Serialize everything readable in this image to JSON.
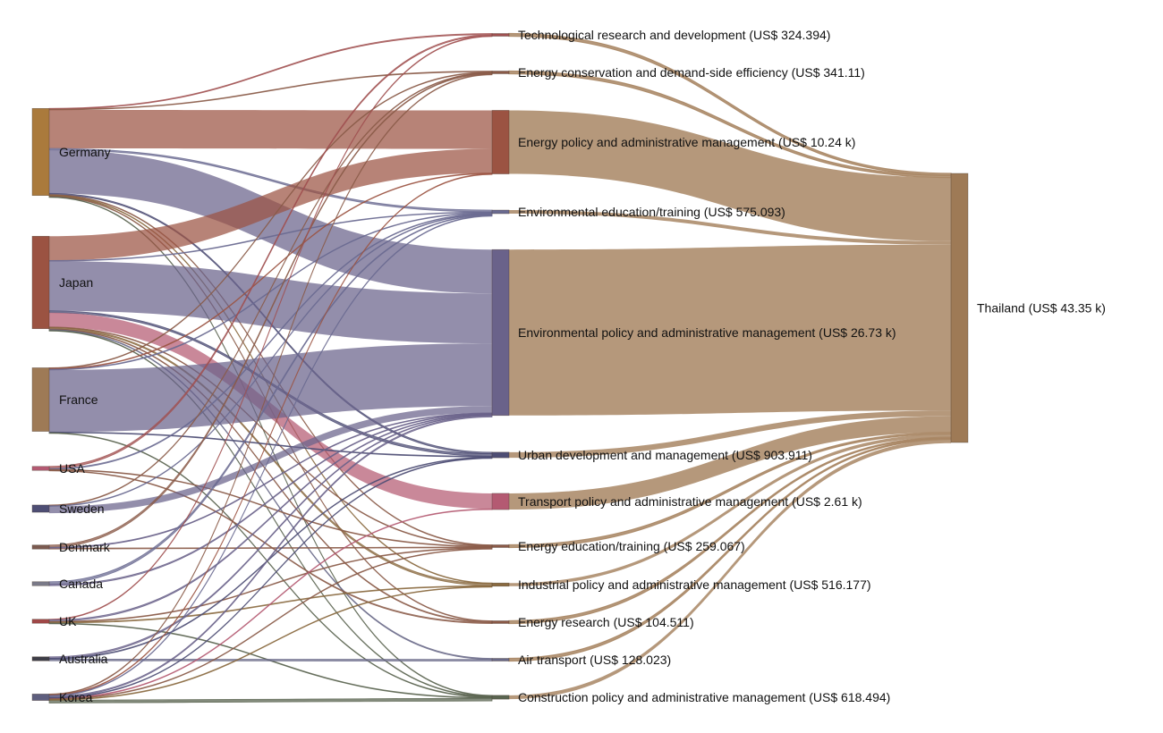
{
  "chart_data": {
    "type": "sankey",
    "title": "",
    "unit": "US$",
    "donors": [
      {
        "key": "germany",
        "label": "Germany",
        "color": "#aa7a3c"
      },
      {
        "key": "japan",
        "label": "Japan",
        "color": "#9b5342"
      },
      {
        "key": "france",
        "label": "France",
        "color": "#9e7a56"
      },
      {
        "key": "usa",
        "label": "USA",
        "color": "#b45a72"
      },
      {
        "key": "sweden",
        "label": "Sweden",
        "color": "#4e4e74"
      },
      {
        "key": "denmark",
        "label": "Denmark",
        "color": "#7a5a50"
      },
      {
        "key": "canada",
        "label": "Canada",
        "color": "#7a7a88"
      },
      {
        "key": "uk",
        "label": "UK",
        "color": "#a04848"
      },
      {
        "key": "australia",
        "label": "Australia",
        "color": "#3e3e48"
      },
      {
        "key": "korea",
        "label": "Korea",
        "color": "#5e5e7e"
      }
    ],
    "sectors": [
      {
        "key": "tech_rd",
        "label": "Technological research and development (US$ 324.394)",
        "value": 324.394,
        "color": "#a05050"
      },
      {
        "key": "energy_cons",
        "label": "Energy conservation and demand-side efficiency (US$ 341.11)",
        "value": 341.11,
        "color": "#8a5a48"
      },
      {
        "key": "energy_policy",
        "label": "Energy policy and administrative management (US$ 10.24 k)",
        "value": 10240,
        "color": "#9b5342"
      },
      {
        "key": "env_edu",
        "label": "Environmental education/training (US$ 575.093)",
        "value": 575.093,
        "color": "#6a6a90"
      },
      {
        "key": "env_policy",
        "label": "Environmental policy and administrative management (US$ 26.73 k)",
        "value": 26730,
        "color": "#6a628a"
      },
      {
        "key": "urban",
        "label": "Urban development and management (US$ 903.911)",
        "value": 903.911,
        "color": "#4e4e74"
      },
      {
        "key": "transport",
        "label": "Transport policy and administrative management (US$ 2.61 k)",
        "value": 2610,
        "color": "#b45a72"
      },
      {
        "key": "energy_edu",
        "label": "Energy education/training (US$ 259.067)",
        "value": 259.067,
        "color": "#8a5a48"
      },
      {
        "key": "industrial",
        "label": "Industrial policy and administrative management (US$ 516.177)",
        "value": 516.177,
        "color": "#8a6a40"
      },
      {
        "key": "energy_res",
        "label": "Energy research (US$ 104.511)",
        "value": 104.511,
        "color": "#8a5a48"
      },
      {
        "key": "air",
        "label": "Air transport (US$ 128.023)",
        "value": 128.023,
        "color": "#6a6a88"
      },
      {
        "key": "construction",
        "label": "Construction policy and administrative management (US$ 618.494)",
        "value": 618.494,
        "color": "#5a6450"
      }
    ],
    "recipient": {
      "key": "thailand",
      "label": "Thailand (US$ 43.35 k)",
      "value": 43350,
      "color": "#9e7a56"
    },
    "flows": [
      {
        "from": "germany",
        "to": "tech_rd",
        "value": 120
      },
      {
        "from": "germany",
        "to": "energy_cons",
        "value": 80
      },
      {
        "from": "germany",
        "to": "energy_policy",
        "value": 6200
      },
      {
        "from": "germany",
        "to": "env_edu",
        "value": 250
      },
      {
        "from": "germany",
        "to": "env_policy",
        "value": 7000
      },
      {
        "from": "germany",
        "to": "urban",
        "value": 200
      },
      {
        "from": "germany",
        "to": "energy_edu",
        "value": 50
      },
      {
        "from": "germany",
        "to": "industrial",
        "value": 30
      },
      {
        "from": "germany",
        "to": "energy_res",
        "value": 20
      },
      {
        "from": "germany",
        "to": "construction",
        "value": 80
      },
      {
        "from": "japan",
        "to": "energy_policy",
        "value": 3900
      },
      {
        "from": "japan",
        "to": "env_edu",
        "value": 40
      },
      {
        "from": "japan",
        "to": "env_policy",
        "value": 8000
      },
      {
        "from": "japan",
        "to": "urban",
        "value": 300
      },
      {
        "from": "japan",
        "to": "transport",
        "value": 2300
      },
      {
        "from": "japan",
        "to": "energy_edu",
        "value": 40
      },
      {
        "from": "japan",
        "to": "industrial",
        "value": 200
      },
      {
        "from": "japan",
        "to": "energy_res",
        "value": 30
      },
      {
        "from": "japan",
        "to": "air",
        "value": 50
      },
      {
        "from": "japan",
        "to": "construction",
        "value": 40
      },
      {
        "from": "france",
        "to": "energy_cons",
        "value": 40
      },
      {
        "from": "france",
        "to": "energy_policy",
        "value": 40
      },
      {
        "from": "france",
        "to": "env_edu",
        "value": 30
      },
      {
        "from": "france",
        "to": "env_policy",
        "value": 10000
      },
      {
        "from": "france",
        "to": "urban",
        "value": 100
      },
      {
        "from": "france",
        "to": "construction",
        "value": 30
      },
      {
        "from": "usa",
        "to": "tech_rd",
        "value": 130
      },
      {
        "from": "usa",
        "to": "env_edu",
        "value": 60
      },
      {
        "from": "usa",
        "to": "energy_edu",
        "value": 30
      },
      {
        "from": "usa",
        "to": "energy_res",
        "value": 30
      },
      {
        "from": "sweden",
        "to": "env_policy",
        "value": 1100
      },
      {
        "from": "sweden",
        "to": "energy_cons",
        "value": 30
      },
      {
        "from": "sweden",
        "to": "env_edu",
        "value": 40
      },
      {
        "from": "denmark",
        "to": "energy_cons",
        "value": 80
      },
      {
        "from": "denmark",
        "to": "energy_edu",
        "value": 30
      },
      {
        "from": "denmark",
        "to": "env_policy",
        "value": 30
      },
      {
        "from": "canada",
        "to": "env_edu",
        "value": 40
      },
      {
        "from": "canada",
        "to": "env_policy",
        "value": 20
      },
      {
        "from": "uk",
        "to": "tech_rd",
        "value": 40
      },
      {
        "from": "uk",
        "to": "env_policy",
        "value": 100
      },
      {
        "from": "uk",
        "to": "energy_edu",
        "value": 40
      },
      {
        "from": "uk",
        "to": "industrial",
        "value": 60
      },
      {
        "from": "uk",
        "to": "construction",
        "value": 30
      },
      {
        "from": "australia",
        "to": "env_policy",
        "value": 70
      },
      {
        "from": "australia",
        "to": "air",
        "value": 78
      },
      {
        "from": "australia",
        "to": "urban",
        "value": 40
      },
      {
        "from": "korea",
        "to": "construction",
        "value": 440
      },
      {
        "from": "korea",
        "to": "env_policy",
        "value": 200
      },
      {
        "from": "korea",
        "to": "transport",
        "value": 110
      },
      {
        "from": "korea",
        "to": "energy_policy",
        "value": 100
      },
      {
        "from": "korea",
        "to": "urban",
        "value": 60
      },
      {
        "from": "korea",
        "to": "energy_cons",
        "value": 40
      },
      {
        "from": "korea",
        "to": "energy_edu",
        "value": 30
      },
      {
        "from": "korea",
        "to": "industrial",
        "value": 30
      },
      {
        "from": "korea",
        "to": "env_edu",
        "value": 30
      }
    ]
  }
}
